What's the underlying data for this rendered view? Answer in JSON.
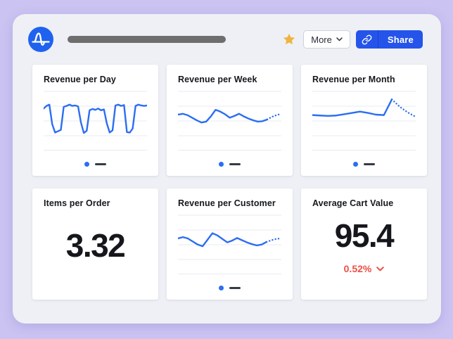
{
  "header": {
    "logo": "amplitude-logo",
    "more_label": "More",
    "share_label": "Share"
  },
  "colors": {
    "page_bg": "#cbc4f2",
    "panel_bg": "#eef0f5",
    "logo_blue": "#1f62f0",
    "accent_blue": "#2554ea",
    "line_blue": "#2b6ef2",
    "grid_gray": "#e9ebf1",
    "star_gold": "#f0b43e",
    "negative_red": "#ec4f45",
    "legend_dash": "#343a46",
    "title_bar_gray": "#6e6e6e"
  },
  "cards": [
    {
      "title": "Revenue per Day",
      "type": "line"
    },
    {
      "title": "Revenue per Week",
      "type": "line"
    },
    {
      "title": "Revenue per Month",
      "type": "line"
    },
    {
      "title": "Items per Order",
      "type": "number",
      "value": "3.32"
    },
    {
      "title": "Revenue per Customer",
      "type": "line"
    },
    {
      "title": "Average Cart Value",
      "type": "number",
      "value": "95.4",
      "change": "0.52%",
      "change_direction": "down"
    }
  ],
  "chart_data": [
    {
      "type": "line",
      "title": "Revenue per Day",
      "scale_note": "no axis labels shown; values normalized 0-100 estimated from pixels",
      "values": [
        64,
        70,
        73,
        28,
        9,
        12,
        15,
        68,
        70,
        73,
        70,
        71,
        69,
        32,
        8,
        13,
        60,
        63,
        61,
        64,
        60,
        62,
        30,
        9,
        14,
        71,
        73,
        70,
        72,
        10,
        9,
        18,
        70,
        73,
        71,
        70,
        71
      ],
      "projected": [],
      "grid": true,
      "legend": [
        "series-dot",
        "series-dash"
      ]
    },
    {
      "type": "line",
      "title": "Revenue per Week",
      "scale_note": "no axis labels shown; values normalized 0-100 estimated from pixels",
      "values": [
        50,
        52,
        49,
        43,
        37,
        32,
        34,
        46,
        61,
        57,
        51,
        43,
        47,
        52,
        46,
        41,
        37,
        34,
        35,
        39
      ],
      "projected": [
        45,
        49,
        52
      ],
      "grid": true,
      "legend": [
        "series-dot",
        "series-dash"
      ]
    },
    {
      "type": "line",
      "title": "Revenue per Month",
      "scale_note": "no axis labels shown; values normalized 0-100 estimated from pixels",
      "values": [
        49,
        48,
        47,
        48,
        51,
        54,
        57,
        54,
        50,
        49,
        85
      ],
      "projected": [
        68,
        55,
        45
      ],
      "grid": true,
      "legend": [
        "series-dot",
        "series-dash"
      ]
    },
    {
      "type": "line",
      "title": "Revenue per Customer",
      "scale_note": "no axis labels shown; values normalized 0-100 estimated from pixels",
      "values": [
        50,
        53,
        50,
        43,
        36,
        32,
        47,
        62,
        57,
        49,
        41,
        45,
        51,
        46,
        41,
        37,
        34,
        36,
        42
      ],
      "projected": [
        46,
        49,
        50
      ],
      "grid": true,
      "legend": [
        "series-dot",
        "series-dash"
      ]
    }
  ]
}
